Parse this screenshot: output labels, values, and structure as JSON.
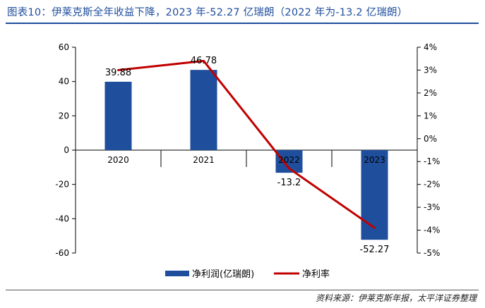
{
  "header": {
    "title": "图表10：伊莱克斯全年收益下降，2023 年-52.27 亿瑞朗（2022 年为-13.2 亿瑞朗）"
  },
  "footer": {
    "source": "资料来源：伊莱克斯年报，太平洋证券整理"
  },
  "chart_data": {
    "type": "bar",
    "categories": [
      "2020",
      "2021",
      "2022",
      "2023"
    ],
    "series": [
      {
        "name": "净利润(亿瑞朗)",
        "kind": "bar",
        "axis": "left",
        "color": "#1f4e9c",
        "values": [
          39.88,
          46.78,
          -13.2,
          -52.27
        ],
        "labels": [
          "39.88",
          "46.78",
          "-13.2",
          "-52.27"
        ]
      },
      {
        "name": "净利率",
        "kind": "line",
        "axis": "right",
        "color": "#c00000",
        "values": [
          3.0,
          3.4,
          -1.3,
          -3.9
        ]
      }
    ],
    "y_left": {
      "min": -60,
      "max": 60,
      "ticks": [
        60,
        40,
        20,
        0,
        -20,
        -40,
        -60
      ]
    },
    "y_right": {
      "min": -5,
      "max": 4,
      "ticks": [
        "4%",
        "3%",
        "2%",
        "1%",
        "0%",
        "-1%",
        "-2%",
        "-3%",
        "-4%",
        "-5%"
      ]
    },
    "legend_position": "bottom"
  }
}
